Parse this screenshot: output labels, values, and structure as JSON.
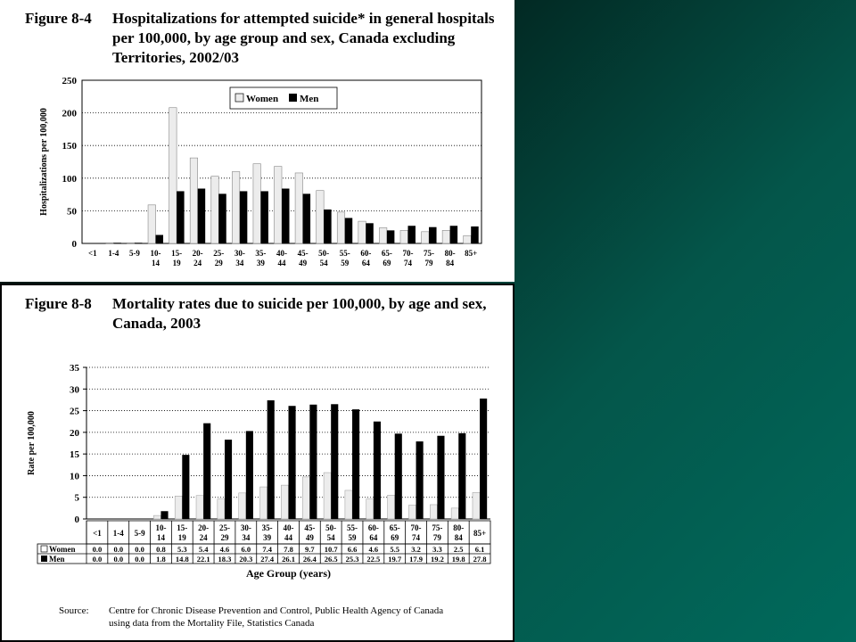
{
  "figures": {
    "top": {
      "number": "Figure 8-4",
      "title": "Hospitalizations for attempted suicide* in general hospitals per 100,000, by age group and sex, Canada excluding Territories, 2002/03"
    },
    "bottom": {
      "number": "Figure 8-8",
      "title": "Mortality rates due to suicide per 100,000, by age and sex, Canada, 2003",
      "source_label": "Source:",
      "source_text": "Centre for Chronic Disease Prevention and Control, Public Health Agency of Canada using data from the Mortality File, Statistics Canada"
    }
  },
  "colors": {
    "women": "#ececec",
    "men": "#000000",
    "page_bg": "#006a5c"
  },
  "chart_data": [
    {
      "type": "bar",
      "title": "Hospitalizations for attempted suicide* in general hospitals per 100,000, by age group and sex, Canada excluding Territories, 2002/03",
      "categories": [
        "<1",
        "1-4",
        "5-9",
        "10-14",
        "15-19",
        "20-24",
        "25-29",
        "30-34",
        "35-39",
        "40-44",
        "45-49",
        "50-54",
        "55-59",
        "60-64",
        "65-69",
        "70-74",
        "75-79",
        "80-84",
        "85+"
      ],
      "tick_labels": [
        [
          "<1"
        ],
        [
          "1-4"
        ],
        [
          "5-9"
        ],
        [
          "10-",
          "14"
        ],
        [
          "15-",
          "19"
        ],
        [
          "20-",
          "24"
        ],
        [
          "25-",
          "29"
        ],
        [
          "30-",
          "34"
        ],
        [
          "35-",
          "39"
        ],
        [
          "40-",
          "44"
        ],
        [
          "45-",
          "49"
        ],
        [
          "50-",
          "54"
        ],
        [
          "55-",
          "59"
        ],
        [
          "60-",
          "64"
        ],
        [
          "65-",
          "69"
        ],
        [
          "70-",
          "74"
        ],
        [
          "75-",
          "79"
        ],
        [
          "80-",
          "84"
        ],
        [
          "85+"
        ]
      ],
      "series": [
        {
          "name": "Women",
          "values": [
            0,
            1,
            1,
            59,
            208,
            131,
            103,
            110,
            122,
            118,
            108,
            81,
            48,
            34,
            24,
            20,
            18,
            20,
            12
          ]
        },
        {
          "name": "Men",
          "values": [
            0,
            1,
            1,
            13,
            80,
            84,
            76,
            80,
            80,
            84,
            76,
            52,
            39,
            31,
            20,
            27,
            25,
            27,
            26
          ]
        }
      ],
      "ylabel": "Hospitalizations per 100,000",
      "xlabel": "",
      "ylim": [
        0,
        250
      ],
      "yticks": [
        0,
        50,
        100,
        150,
        200,
        250
      ],
      "grid": true,
      "legend": "top-center"
    },
    {
      "type": "bar",
      "title": "Mortality rates due to suicide per 100,000, by age and sex, Canada, 2003",
      "categories": [
        "<1",
        "1-4",
        "5-9",
        "10-14",
        "15-19",
        "20-24",
        "25-29",
        "30-34",
        "35-39",
        "40-44",
        "45-49",
        "50-54",
        "55-59",
        "60-64",
        "65-69",
        "70-74",
        "75-79",
        "80-84",
        "85+"
      ],
      "tick_labels": [
        [
          "<1"
        ],
        [
          "1-4"
        ],
        [
          "5-9"
        ],
        [
          "10-",
          "14"
        ],
        [
          "15-",
          "19"
        ],
        [
          "20-",
          "24"
        ],
        [
          "25-",
          "29"
        ],
        [
          "30-",
          "34"
        ],
        [
          "35-",
          "39"
        ],
        [
          "40-",
          "44"
        ],
        [
          "45-",
          "49"
        ],
        [
          "50-",
          "54"
        ],
        [
          "55-",
          "59"
        ],
        [
          "60-",
          "64"
        ],
        [
          "65-",
          "69"
        ],
        [
          "70-",
          "74"
        ],
        [
          "75-",
          "79"
        ],
        [
          "80-",
          "84"
        ],
        [
          "85+"
        ]
      ],
      "series": [
        {
          "name": "Women",
          "values": [
            0.0,
            0.0,
            0.0,
            0.8,
            5.3,
            5.4,
            4.6,
            6.0,
            7.4,
            7.8,
            9.7,
            10.7,
            6.6,
            4.6,
            5.5,
            3.2,
            3.3,
            2.5,
            6.1
          ],
          "labels": [
            "0.0",
            "0.0",
            "0.0",
            "0.8",
            "5.3",
            "5.4",
            "4.6",
            "6.0",
            "7.4",
            "7.8",
            "9.7",
            "10.7",
            "6.6",
            "4.6",
            "5.5",
            "3.2",
            "3.3",
            "2.5",
            "6.1"
          ]
        },
        {
          "name": "Men",
          "values": [
            0.0,
            0.0,
            0.0,
            1.8,
            14.8,
            22.1,
            18.3,
            20.3,
            27.4,
            26.1,
            26.4,
            26.5,
            25.3,
            22.5,
            19.7,
            17.9,
            19.2,
            19.8,
            27.8
          ],
          "labels": [
            "0.0",
            "0.0",
            "0.0",
            "1.8",
            "14.8",
            "22.1",
            "18.3",
            "20.3",
            "27.4",
            "26.1",
            "26.4",
            "26.5",
            "25.3",
            "22.5",
            "19.7",
            "17.9",
            "19.2",
            "19.8",
            "27.8"
          ]
        }
      ],
      "ylabel": "Rate per 100,000",
      "xlabel": "Age Group (years)",
      "ylim": [
        0,
        35
      ],
      "yticks": [
        0,
        5,
        10,
        15,
        20,
        25,
        30,
        35
      ],
      "grid": true,
      "legend": "data-table-below"
    }
  ]
}
